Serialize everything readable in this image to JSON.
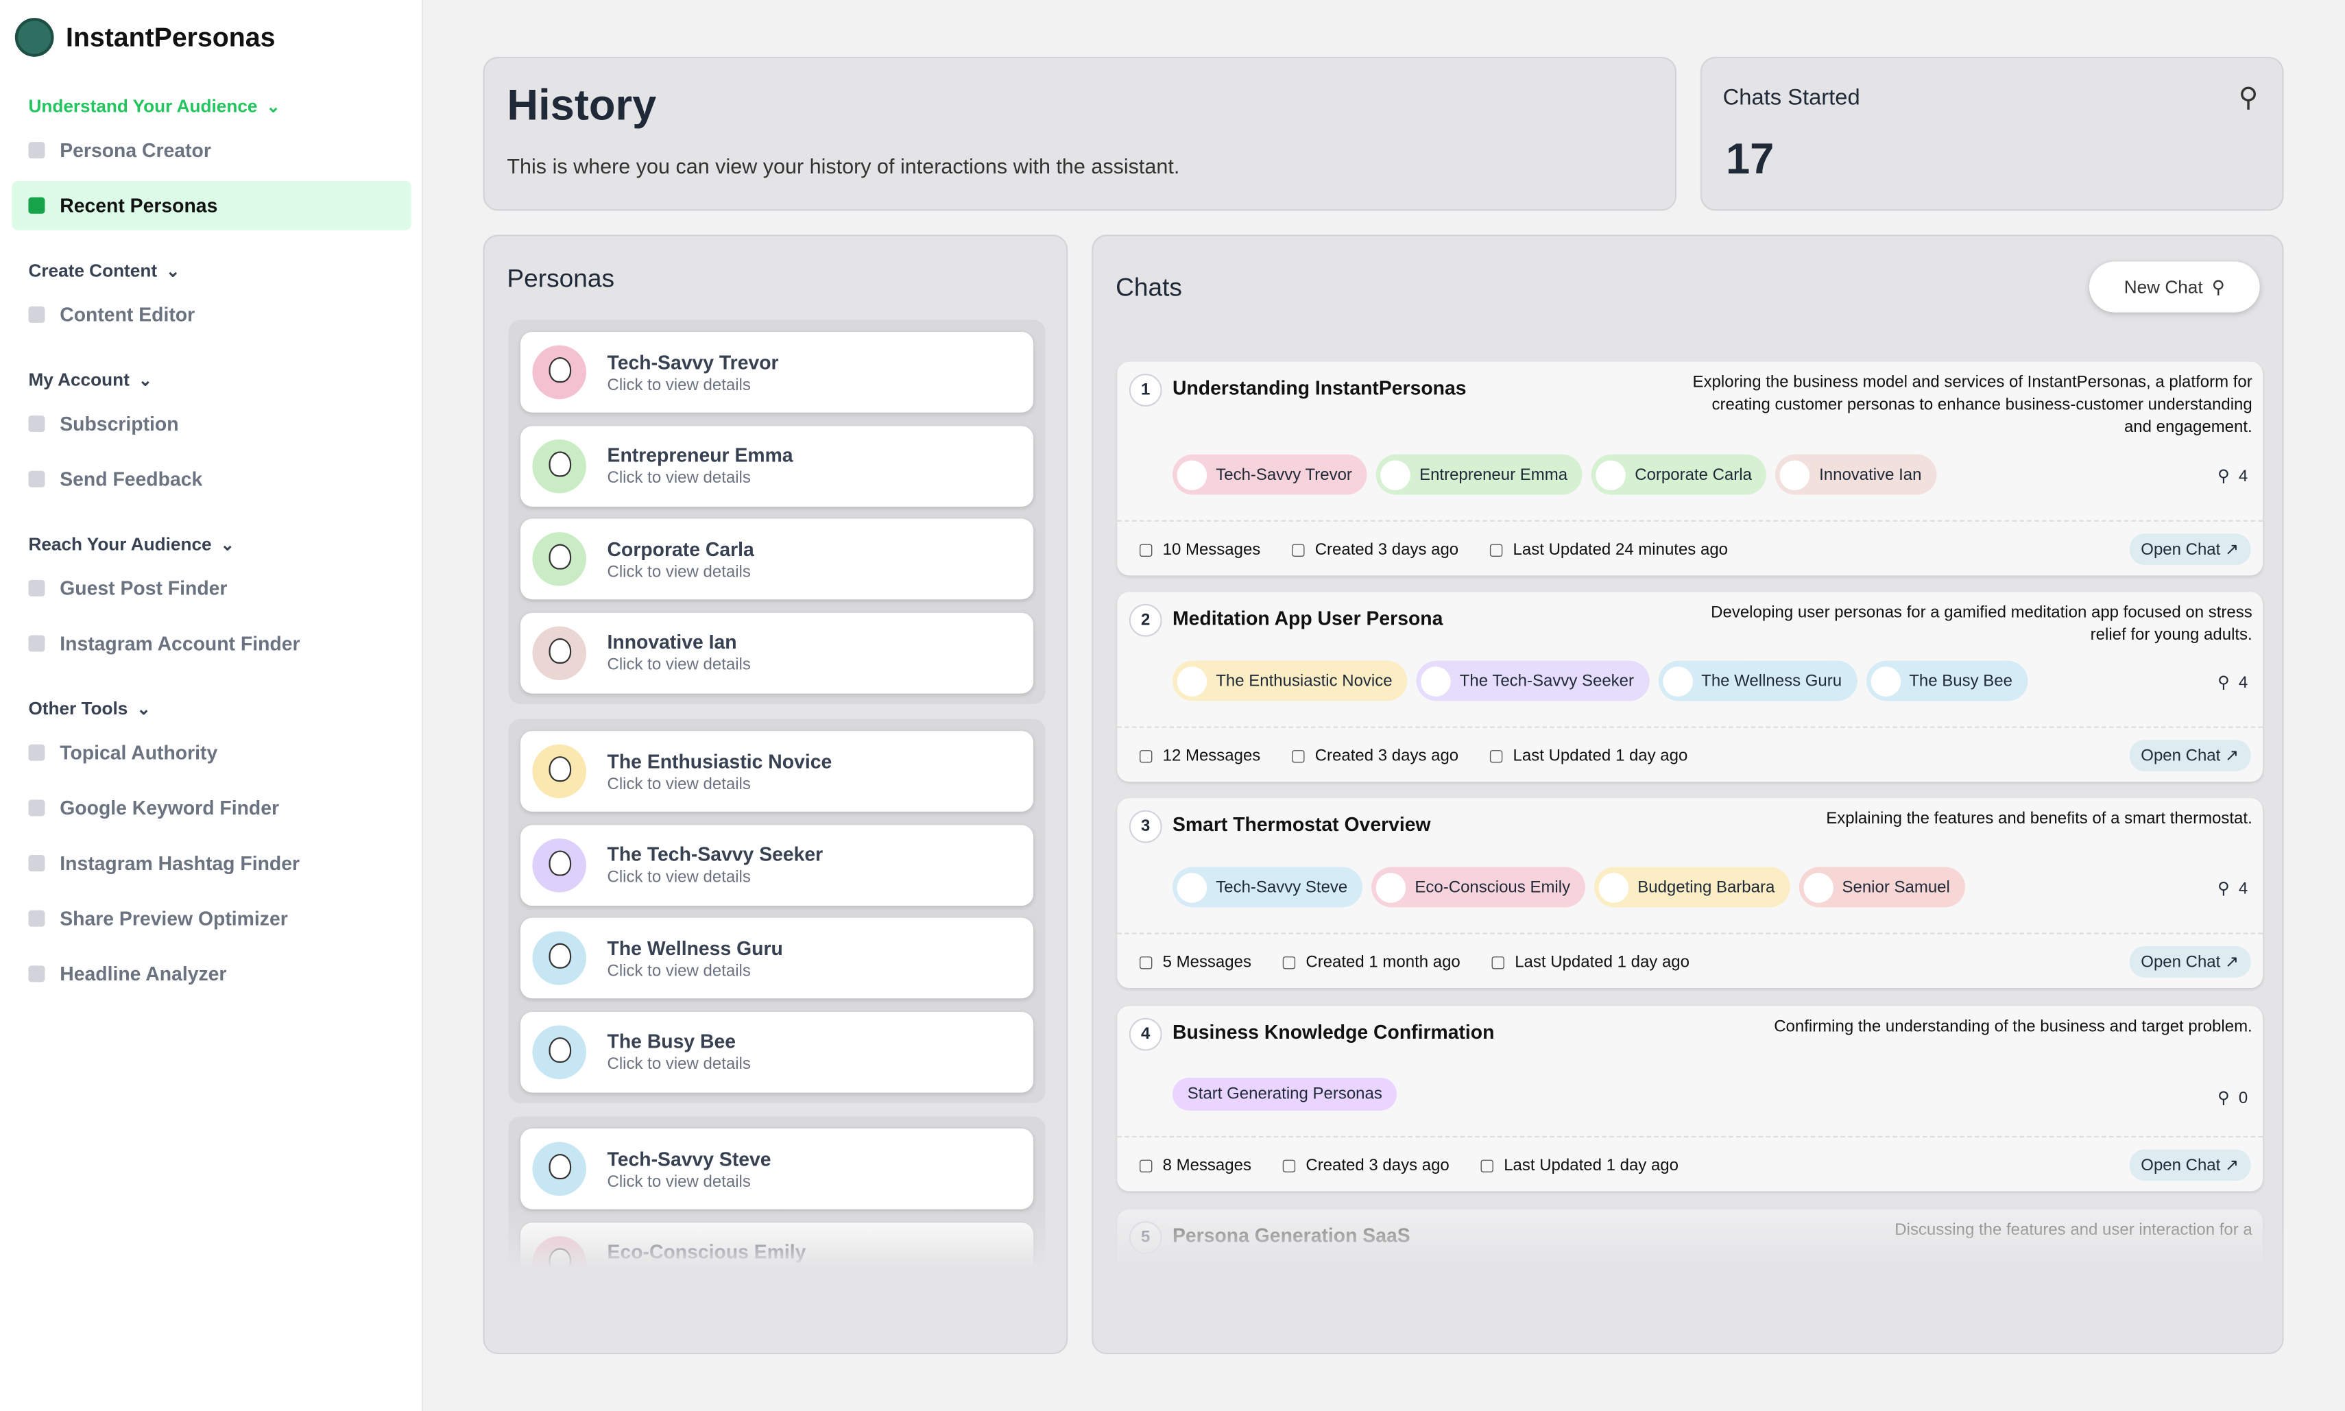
{
  "sidebar": {
    "brand": "InstantPersonas",
    "groups": [
      {
        "title": "Understand Your Audience",
        "items": [
          "Persona Creator",
          "Recent Personas"
        ]
      },
      {
        "title": "Create Content",
        "items": [
          "Content Editor"
        ]
      },
      {
        "title": "My Account",
        "items": [
          "Subscription",
          "Send Feedback"
        ]
      },
      {
        "title": "Reach Your Audience",
        "items": [
          "Guest Post Finder",
          "Instagram Account Finder"
        ]
      },
      {
        "title": "Other Tools",
        "items": [
          "Topical Authority",
          "Google Keyword Finder",
          "Instagram Hashtag Finder",
          "Share Preview Optimizer",
          "Headline Analyzer"
        ]
      }
    ],
    "active": "Recent Personas"
  },
  "history": {
    "title": "History",
    "description": "This is where you can view your history of interactions with the assistant."
  },
  "stat": {
    "label": "Chats Started",
    "value": 17
  },
  "personas": {
    "title": "Personas",
    "card_subtitle": "Click to view details",
    "groups": [
      [
        {
          "name": "Tech-Savvy Trevor",
          "color": "#f3c1cf"
        },
        {
          "name": "Entrepreneur Emma",
          "color": "#c9ecc5"
        },
        {
          "name": "Corporate Carla",
          "color": "#c9ecc5"
        },
        {
          "name": "Innovative Ian",
          "color": "#ead6d2"
        }
      ],
      [
        {
          "name": "The Enthusiastic Novice",
          "color": "#fbe8b0"
        },
        {
          "name": "The Tech-Savvy Seeker",
          "color": "#ddd0fb"
        },
        {
          "name": "The Wellness Guru",
          "color": "#c7e6f3"
        },
        {
          "name": "The Busy Bee",
          "color": "#c7e6f3"
        }
      ],
      [
        {
          "name": "Tech-Savvy Steve",
          "color": "#c7e6f3"
        },
        {
          "name": "Eco-Conscious Emily",
          "color": "#f3c1cf"
        }
      ]
    ]
  },
  "chats": {
    "title": "Chats",
    "new_chat": "New Chat",
    "open_label": "Open Chat",
    "items": [
      {
        "index": 1,
        "title": "Understanding InstantPersonas",
        "description": "Exploring the business model and services of InstantPersonas, a platform for creating customer personas to enhance business-customer understanding and engagement.",
        "personas": [
          {
            "name": "Tech-Savvy Trevor",
            "color": "#f7d3dc"
          },
          {
            "name": "Entrepreneur Emma",
            "color": "#d6f0d2"
          },
          {
            "name": "Corporate Carla",
            "color": "#d6f0d2"
          },
          {
            "name": "Innovative Ian",
            "color": "#f1e0dc"
          }
        ],
        "count": 4,
        "messages": "10 Messages",
        "created": "Created 3 days ago",
        "updated": "Last Updated 24 minutes ago"
      },
      {
        "index": 2,
        "title": "Meditation App User Persona",
        "description": "Developing user personas for a gamified meditation app focused on stress relief for young adults.",
        "personas": [
          {
            "name": "The Enthusiastic Novice",
            "color": "#fbedc4"
          },
          {
            "name": "The Tech-Savvy Seeker",
            "color": "#e6dcfb"
          },
          {
            "name": "The Wellness Guru",
            "color": "#d5ecf6"
          },
          {
            "name": "The Busy Bee",
            "color": "#d5ecf6"
          }
        ],
        "count": 4,
        "messages": "12 Messages",
        "created": "Created 3 days ago",
        "updated": "Last Updated 1 day ago"
      },
      {
        "index": 3,
        "title": "Smart Thermostat Overview",
        "description": "Explaining the features and benefits of a smart thermostat.",
        "personas": [
          {
            "name": "Tech-Savvy Steve",
            "color": "#d5ecf6"
          },
          {
            "name": "Eco-Conscious Emily",
            "color": "#f7d3dc"
          },
          {
            "name": "Budgeting Barbara",
            "color": "#fbedc4"
          },
          {
            "name": "Senior Samuel",
            "color": "#f7d6d6"
          }
        ],
        "count": 4,
        "messages": "5 Messages",
        "created": "Created 1 month ago",
        "updated": "Last Updated 1 day ago"
      },
      {
        "index": 4,
        "title": "Business Knowledge Confirmation",
        "description": "Confirming the understanding of the business and target problem.",
        "generate": "Start Generating Personas",
        "count": 0,
        "messages": "8 Messages",
        "created": "Created 3 days ago",
        "updated": "Last Updated 1 day ago"
      },
      {
        "index": 5,
        "title": "Persona Generation SaaS",
        "description": "Discussing the features and user interaction for a"
      }
    ]
  }
}
